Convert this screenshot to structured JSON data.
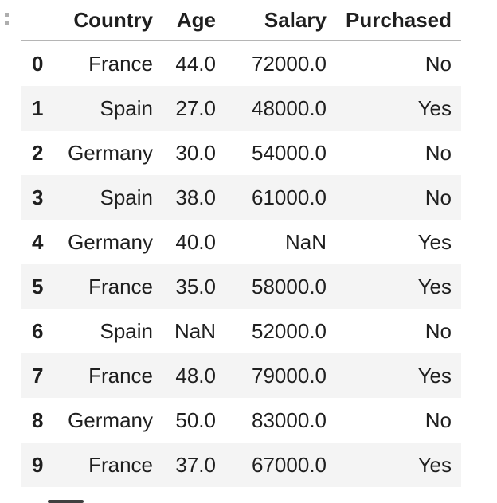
{
  "icons": {
    "drag_handle": "drag-handle-dots",
    "scrollbar_thumb": "horizontal-scrollbar-thumb"
  },
  "colors": {
    "stripe": "#f4f4f4",
    "header_border": "#b5b5b5",
    "text": "#1f1f1f",
    "handle_dots": "#aeaeae",
    "scrollbar": "#404040"
  },
  "table": {
    "index_header": "",
    "columns": [
      "Country",
      "Age",
      "Salary",
      "Purchased"
    ],
    "rows": [
      {
        "index": "0",
        "Country": "France",
        "Age": "44.0",
        "Salary": "72000.0",
        "Purchased": "No"
      },
      {
        "index": "1",
        "Country": "Spain",
        "Age": "27.0",
        "Salary": "48000.0",
        "Purchased": "Yes"
      },
      {
        "index": "2",
        "Country": "Germany",
        "Age": "30.0",
        "Salary": "54000.0",
        "Purchased": "No"
      },
      {
        "index": "3",
        "Country": "Spain",
        "Age": "38.0",
        "Salary": "61000.0",
        "Purchased": "No"
      },
      {
        "index": "4",
        "Country": "Germany",
        "Age": "40.0",
        "Salary": "NaN",
        "Purchased": "Yes"
      },
      {
        "index": "5",
        "Country": "France",
        "Age": "35.0",
        "Salary": "58000.0",
        "Purchased": "Yes"
      },
      {
        "index": "6",
        "Country": "Spain",
        "Age": "NaN",
        "Salary": "52000.0",
        "Purchased": "No"
      },
      {
        "index": "7",
        "Country": "France",
        "Age": "48.0",
        "Salary": "79000.0",
        "Purchased": "Yes"
      },
      {
        "index": "8",
        "Country": "Germany",
        "Age": "50.0",
        "Salary": "83000.0",
        "Purchased": "No"
      },
      {
        "index": "9",
        "Country": "France",
        "Age": "37.0",
        "Salary": "67000.0",
        "Purchased": "Yes"
      }
    ]
  }
}
